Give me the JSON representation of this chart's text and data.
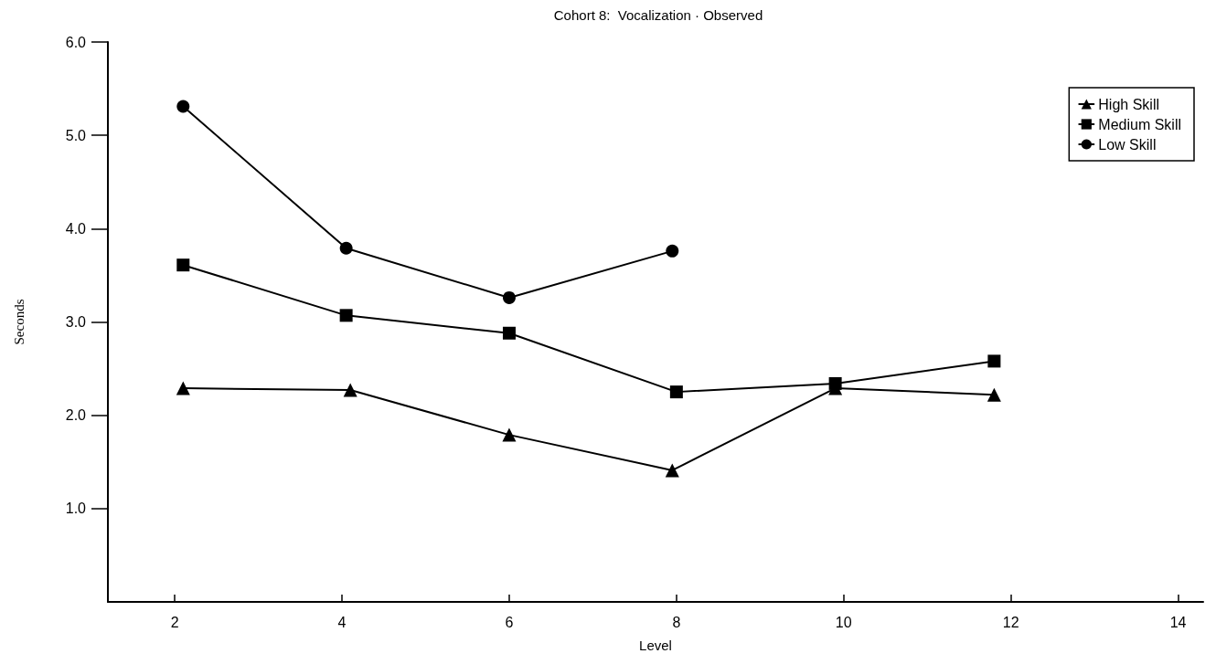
{
  "chart_data": {
    "type": "line",
    "title": "Cohort 8:  Vocalization · Observed",
    "xlabel": "Level",
    "ylabel": "Seconds",
    "xlim": [
      1.2,
      14.3
    ],
    "xticks": [
      2,
      4,
      6,
      8,
      10,
      12,
      14
    ],
    "ylim": [
      0,
      6
    ],
    "yticks": [
      {
        "value": 1,
        "label": "1.0"
      },
      {
        "value": 2,
        "label": "2.0"
      },
      {
        "value": 3,
        "label": "3.0"
      },
      {
        "value": 4,
        "label": "4.0"
      },
      {
        "value": 5,
        "label": "5.0"
      },
      {
        "value": 6,
        "label": "6.0"
      }
    ],
    "grid": false,
    "legend": "top right",
    "line_style": "solid",
    "series": [
      {
        "name": "High Skill",
        "color": "#000000",
        "marker": "triangle",
        "x": [
          2.1,
          4.1,
          6,
          7.95,
          9.9,
          11.8
        ],
        "values": [
          2.29,
          2.27,
          1.79,
          1.41,
          2.29,
          2.22
        ]
      },
      {
        "name": "Medium Skill",
        "color": "#000000",
        "marker": "square",
        "x": [
          2.1,
          4.05,
          6,
          8,
          9.9,
          11.8
        ],
        "values": [
          3.61,
          3.07,
          2.88,
          2.25,
          2.34,
          2.58
        ]
      },
      {
        "name": "Low Skill",
        "color": "#000000",
        "marker": "circle",
        "x": [
          2.1,
          4.05,
          6,
          7.95
        ],
        "values": [
          5.31,
          3.79,
          3.26,
          3.76
        ]
      }
    ]
  }
}
